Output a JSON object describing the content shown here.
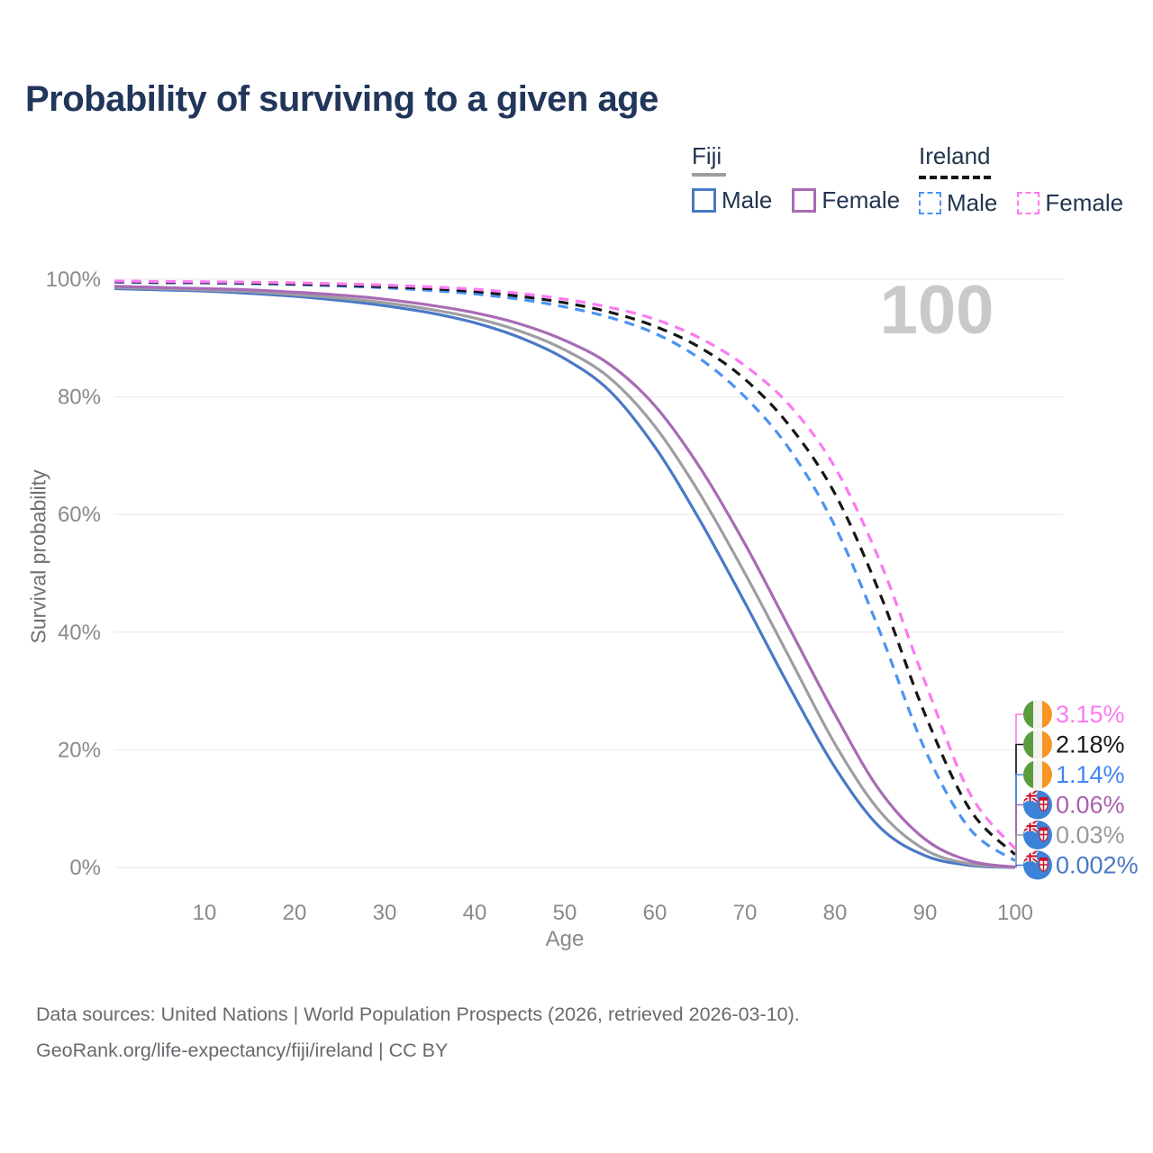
{
  "title": "Probability of surviving to a given age",
  "watermark": "100",
  "legend": {
    "groups": [
      {
        "country": "Fiji",
        "line_style": "solid",
        "underline_color": "#9e9ea2",
        "items": [
          {
            "label": "Male",
            "color": "#4a79c5"
          },
          {
            "label": "Female",
            "color": "#a86bb5"
          }
        ]
      },
      {
        "country": "Ireland",
        "line_style": "dashed",
        "underline_color": "#161616",
        "items": [
          {
            "label": "Male",
            "color": "#4b93f2"
          },
          {
            "label": "Female",
            "color": "#fb7af2"
          }
        ]
      }
    ]
  },
  "chart_data": {
    "type": "line",
    "title": "Probability of surviving to a given age",
    "xlabel": "Age",
    "ylabel": "Survival probability",
    "xlim": [
      0,
      100
    ],
    "ylim": [
      0,
      100
    ],
    "x_ticks": [
      10,
      20,
      30,
      40,
      50,
      60,
      70,
      80,
      90,
      100
    ],
    "y_ticks": [
      0,
      20,
      40,
      60,
      80,
      100
    ],
    "y_tick_labels": [
      "0%",
      "20%",
      "40%",
      "60%",
      "80%",
      "100%"
    ],
    "grid": "horizontal",
    "legend_position": "top-right",
    "x": [
      0,
      5,
      10,
      15,
      20,
      25,
      30,
      35,
      40,
      45,
      50,
      55,
      60,
      65,
      70,
      75,
      80,
      85,
      90,
      95,
      100
    ],
    "series": [
      {
        "id": "fiji-male",
        "country": "Fiji",
        "sex": "Male",
        "dash": false,
        "color": "#4a79c5",
        "end_label": "0.002%",
        "end_label_color": "#4a79c5",
        "flag": "fiji",
        "values": [
          98.4,
          98.2,
          98.0,
          97.6,
          97.1,
          96.4,
          95.5,
          94.3,
          92.6,
          90.1,
          86.5,
          81.0,
          71.5,
          59.0,
          45.0,
          30.5,
          17.0,
          6.8,
          2.0,
          0.35,
          0.002
        ]
      },
      {
        "id": "fiji-total",
        "country": "Fiji",
        "sex": "Both",
        "dash": false,
        "color": "#9e9ea2",
        "end_label": "0.03%",
        "end_label_color": "#9a9a9a",
        "flag": "fiji",
        "values": [
          98.6,
          98.4,
          98.2,
          97.9,
          97.4,
          96.8,
          96.0,
          94.9,
          93.4,
          91.2,
          88.0,
          83.2,
          75.0,
          63.5,
          50.0,
          35.5,
          21.0,
          9.5,
          3.0,
          0.6,
          0.03
        ]
      },
      {
        "id": "fiji-female",
        "country": "Fiji",
        "sex": "Female",
        "dash": false,
        "color": "#a86bb5",
        "end_label": "0.06%",
        "end_label_color": "#ab5fae",
        "flag": "fiji",
        "values": [
          98.8,
          98.6,
          98.4,
          98.2,
          97.8,
          97.3,
          96.6,
          95.6,
          94.3,
          92.4,
          89.6,
          85.5,
          78.5,
          68.0,
          55.0,
          40.5,
          26.0,
          13.0,
          4.8,
          1.1,
          0.06
        ]
      },
      {
        "id": "ireland-male",
        "country": "Ireland",
        "sex": "Male",
        "dash": true,
        "color": "#4b93f2",
        "end_label": "1.14%",
        "end_label_color": "#4285f4",
        "flag": "ireland",
        "values": [
          99.5,
          99.4,
          99.35,
          99.25,
          99.1,
          98.85,
          98.55,
          98.1,
          97.5,
          96.6,
          95.3,
          93.5,
          90.8,
          86.5,
          80.0,
          71.0,
          58.0,
          40.0,
          20.0,
          6.5,
          1.14
        ]
      },
      {
        "id": "ireland-total",
        "country": "Ireland",
        "sex": "Both",
        "dash": true,
        "color": "#161616",
        "end_label": "2.18%",
        "end_label_color": "#1a1a1a",
        "flag": "ireland",
        "values": [
          99.6,
          99.5,
          99.45,
          99.35,
          99.2,
          99.0,
          98.75,
          98.4,
          97.9,
          97.1,
          96.0,
          94.4,
          92.0,
          88.4,
          83.0,
          75.0,
          63.5,
          46.5,
          26.0,
          9.8,
          2.18
        ]
      },
      {
        "id": "ireland-female",
        "country": "Ireland",
        "sex": "Female",
        "dash": true,
        "color": "#fb7af2",
        "end_label": "3.15%",
        "end_label_color": "#fb7af2",
        "flag": "ireland",
        "values": [
          99.7,
          99.62,
          99.56,
          99.5,
          99.38,
          99.22,
          99.0,
          98.7,
          98.3,
          97.6,
          96.6,
          95.2,
          93.2,
          90.0,
          85.3,
          78.5,
          68.0,
          52.0,
          31.5,
          12.5,
          3.15
        ]
      }
    ]
  },
  "colors": {
    "title": "#21365a",
    "axis_text": "#8a8a8a",
    "gridline": "#ececec",
    "watermark": "#c9c9c9",
    "footer": "#666a6e"
  },
  "footer": {
    "line1": "Data sources: United Nations | World Population Prospects (2026, retrieved 2026-03-10).",
    "line2": "GeoRank.org/life-expectancy/fiji/ireland | CC BY"
  }
}
